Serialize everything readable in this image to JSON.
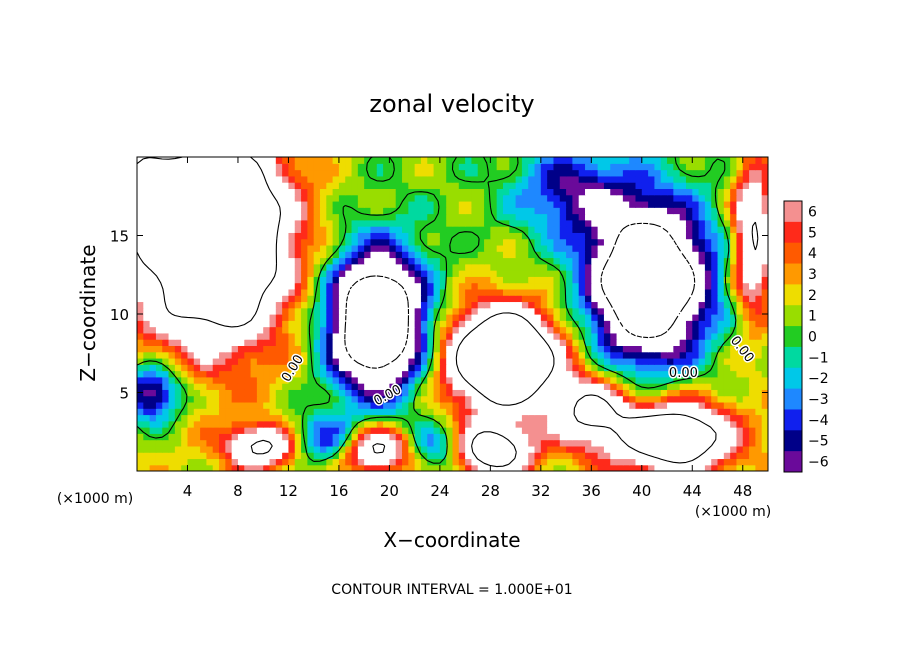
{
  "chart_data": {
    "type": "heatmap",
    "title": "zonal velocity",
    "xlabel": "X−coordinate",
    "ylabel": "Z−coordinate",
    "x_unit_left": "(×1000 m)",
    "x_unit_right": "(×1000 m)",
    "footer": "CONTOUR INTERVAL = 1.000E+01",
    "xlim": [
      0,
      50
    ],
    "ylim": [
      0,
      20
    ],
    "xticks": [
      4,
      8,
      12,
      16,
      20,
      24,
      28,
      32,
      36,
      40,
      44,
      48
    ],
    "yticks": [
      5,
      10,
      15
    ],
    "colorbar": {
      "levels": [
        6,
        5,
        4,
        3,
        2,
        1,
        0,
        -1,
        -2,
        -3,
        -4,
        -5,
        -6
      ],
      "labels": [
        "6",
        "5",
        "4",
        "3",
        "2",
        "1",
        "0",
        "−1",
        "−2",
        "−3",
        "−4",
        "−5",
        "−6"
      ],
      "colors": [
        "#f49090",
        "#ff2a1a",
        "#ff5a00",
        "#ff9900",
        "#eedd00",
        "#99dd00",
        "#22cc22",
        "#00d9a0",
        "#00c8e8",
        "#1e88ff",
        "#1020ee",
        "#000088",
        "#6a0a9a"
      ]
    },
    "over_color": "#ffffff",
    "under_color": "#ffffff",
    "contour_labels": [
      {
        "text": "0.00",
        "x": 12.6,
        "z": 6.4,
        "angle": -58
      },
      {
        "text": "0.00",
        "x": 20.0,
        "z": 4.6,
        "angle": -28
      },
      {
        "text": "0.00",
        "x": 43.3,
        "z": 6.0,
        "angle": 0
      },
      {
        "text": "0.00",
        "x": 47.7,
        "z": 7.6,
        "angle": 52
      }
    ],
    "field_features": [
      {
        "kind": "high",
        "x": 6.0,
        "z": 15.0,
        "sx": 6.0,
        "sz": 6.5,
        "amp": 20
      },
      {
        "kind": "high",
        "x": 0.2,
        "z": 17.5,
        "sx": 1.6,
        "sz": 3.0,
        "amp": 8
      },
      {
        "kind": "high",
        "x": 29.0,
        "z": 7.2,
        "sx": 4.4,
        "sz": 3.2,
        "amp": 18
      },
      {
        "kind": "high",
        "x": 28.0,
        "z": 1.3,
        "sx": 3.2,
        "sz": 1.6,
        "amp": 12
      },
      {
        "kind": "high",
        "x": 10.0,
        "z": 1.6,
        "sx": 3.0,
        "sz": 1.4,
        "amp": 10
      },
      {
        "kind": "high",
        "x": 19.0,
        "z": 1.4,
        "sx": 2.6,
        "sz": 1.4,
        "amp": 10
      },
      {
        "kind": "high",
        "x": 42.5,
        "z": 2.2,
        "sx": 4.6,
        "sz": 2.2,
        "amp": 14
      },
      {
        "kind": "high",
        "x": 48.8,
        "z": 15.0,
        "sx": 1.6,
        "sz": 5.0,
        "amp": 10
      },
      {
        "kind": "high",
        "x": 36.0,
        "z": 3.8,
        "sx": 3.0,
        "sz": 2.2,
        "amp": 9
      },
      {
        "kind": "low",
        "x": 19.0,
        "z": 9.5,
        "sx": 3.8,
        "sz": 4.4,
        "amp": 19
      },
      {
        "kind": "low",
        "x": 40.5,
        "z": 12.0,
        "sx": 4.6,
        "sz": 4.8,
        "amp": 19
      },
      {
        "kind": "low",
        "x": 1.2,
        "z": 5.0,
        "sx": 2.4,
        "sz": 1.8,
        "amp": 9
      },
      {
        "kind": "low",
        "x": 34.5,
        "z": 17.8,
        "sx": 4.5,
        "sz": 2.8,
        "amp": 6
      },
      {
        "kind": "low",
        "x": 14.5,
        "z": 2.0,
        "sx": 3.0,
        "sz": 1.6,
        "amp": 6
      },
      {
        "kind": "low",
        "x": 24.0,
        "z": 1.5,
        "sx": 2.4,
        "sz": 1.6,
        "amp": 6
      }
    ]
  }
}
